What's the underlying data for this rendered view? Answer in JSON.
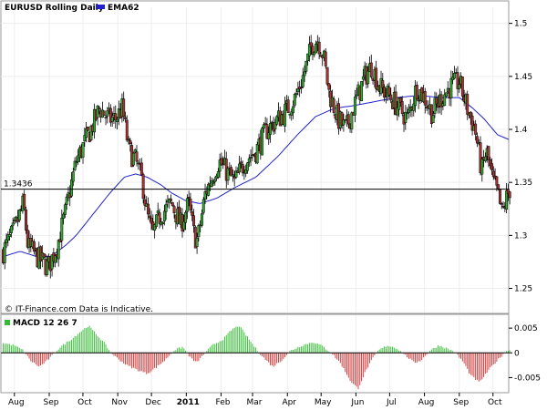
{
  "chart_data": [
    {
      "type": "candlestick",
      "title": "EURUSD Rolling Daily",
      "legend": [
        {
          "name": "EMA62",
          "color": "#2222cc"
        }
      ],
      "ytick_labels": [
        "1.5",
        "1.45",
        "1.4",
        "1.35",
        "1.3",
        "1.25"
      ],
      "ylim": [
        1.235,
        1.51
      ],
      "yticks": [
        1.5,
        1.45,
        1.4,
        1.35,
        1.3,
        1.25
      ],
      "xtick_labels": [
        "Aug",
        "Sep",
        "Oct",
        "Nov",
        "Dec",
        "2011",
        "Feb",
        "Mar",
        "Apr",
        "May",
        "Jun",
        "Jul",
        "Aug",
        "Sep",
        "Oct"
      ],
      "xtick_bold_index": 5,
      "xtick_days": [
        0,
        31,
        61,
        92,
        122,
        153,
        184,
        212,
        243,
        273,
        304,
        334,
        365,
        396,
        426
      ],
      "xlim_days": [
        -12,
        440
      ],
      "current_value_label": "1.3436",
      "current_value": 1.3436,
      "source_note": "© IT-Finance.com Data is Indicative.",
      "price_path": [
        [
          -10,
          1.285
        ],
        [
          0,
          1.305
        ],
        [
          8,
          1.33
        ],
        [
          12,
          1.29
        ],
        [
          20,
          1.28
        ],
        [
          30,
          1.27
        ],
        [
          38,
          1.29
        ],
        [
          45,
          1.32
        ],
        [
          55,
          1.37
        ],
        [
          68,
          1.4
        ],
        [
          76,
          1.42
        ],
        [
          84,
          1.41
        ],
        [
          90,
          1.41
        ],
        [
          96,
          1.42
        ],
        [
          102,
          1.38
        ],
        [
          108,
          1.37
        ],
        [
          114,
          1.35
        ],
        [
          118,
          1.32
        ],
        [
          123,
          1.3
        ],
        [
          130,
          1.32
        ],
        [
          140,
          1.33
        ],
        [
          148,
          1.31
        ],
        [
          155,
          1.33
        ],
        [
          160,
          1.3
        ],
        [
          163,
          1.295
        ],
        [
          170,
          1.34
        ],
        [
          182,
          1.37
        ],
        [
          196,
          1.35
        ],
        [
          205,
          1.37
        ],
        [
          215,
          1.38
        ],
        [
          225,
          1.4
        ],
        [
          240,
          1.415
        ],
        [
          250,
          1.43
        ],
        [
          257,
          1.45
        ],
        [
          265,
          1.48
        ],
        [
          270,
          1.485
        ],
        [
          275,
          1.47
        ],
        [
          280,
          1.435
        ],
        [
          288,
          1.41
        ],
        [
          295,
          1.4
        ],
        [
          305,
          1.43
        ],
        [
          312,
          1.45
        ],
        [
          318,
          1.46
        ],
        [
          325,
          1.44
        ],
        [
          335,
          1.43
        ],
        [
          342,
          1.42
        ],
        [
          350,
          1.41
        ],
        [
          358,
          1.44
        ],
        [
          365,
          1.43
        ],
        [
          372,
          1.415
        ],
        [
          380,
          1.43
        ],
        [
          388,
          1.44
        ],
        [
          396,
          1.445
        ],
        [
          403,
          1.42
        ],
        [
          410,
          1.4
        ],
        [
          416,
          1.36
        ],
        [
          420,
          1.38
        ],
        [
          426,
          1.35
        ],
        [
          430,
          1.34
        ],
        [
          434,
          1.32
        ],
        [
          438,
          1.335
        ],
        [
          441,
          1.3436
        ]
      ],
      "ema_path": [
        [
          -10,
          1.28
        ],
        [
          5,
          1.285
        ],
        [
          20,
          1.28
        ],
        [
          32,
          1.28
        ],
        [
          45,
          1.29
        ],
        [
          55,
          1.3
        ],
        [
          70,
          1.32
        ],
        [
          85,
          1.34
        ],
        [
          98,
          1.355
        ],
        [
          108,
          1.358
        ],
        [
          118,
          1.355
        ],
        [
          130,
          1.348
        ],
        [
          140,
          1.34
        ],
        [
          152,
          1.333
        ],
        [
          165,
          1.33
        ],
        [
          180,
          1.335
        ],
        [
          196,
          1.345
        ],
        [
          215,
          1.355
        ],
        [
          235,
          1.375
        ],
        [
          252,
          1.395
        ],
        [
          268,
          1.412
        ],
        [
          285,
          1.42
        ],
        [
          300,
          1.422
        ],
        [
          320,
          1.426
        ],
        [
          340,
          1.43
        ],
        [
          360,
          1.432
        ],
        [
          380,
          1.43
        ],
        [
          396,
          1.43
        ],
        [
          408,
          1.42
        ],
        [
          418,
          1.41
        ],
        [
          430,
          1.395
        ],
        [
          441,
          1.39
        ]
      ]
    },
    {
      "type": "histogram",
      "title": "MACD 12 26 7",
      "ytick_labels": [
        "0.005",
        "0",
        "-0.005"
      ],
      "ylim": [
        -0.0075,
        0.0065
      ],
      "yticks": [
        0.005,
        0,
        -0.005
      ],
      "positive_color": "#33bb33",
      "negative_color": "#cc3333",
      "macd_path": [
        [
          -10,
          0.002
        ],
        [
          0,
          0.0015
        ],
        [
          8,
          0.0005
        ],
        [
          14,
          -0.0015
        ],
        [
          22,
          -0.0028
        ],
        [
          28,
          -0.0018
        ],
        [
          34,
          -0.0005
        ],
        [
          40,
          0.001
        ],
        [
          52,
          0.003
        ],
        [
          60,
          0.0045
        ],
        [
          66,
          0.0055
        ],
        [
          72,
          0.004
        ],
        [
          80,
          0.002
        ],
        [
          86,
          0.0
        ],
        [
          94,
          -0.0015
        ],
        [
          100,
          -0.0025
        ],
        [
          110,
          -0.0035
        ],
        [
          118,
          -0.0042
        ],
        [
          126,
          -0.003
        ],
        [
          134,
          -0.0015
        ],
        [
          142,
          0.0005
        ],
        [
          150,
          0.0012
        ],
        [
          156,
          -0.0008
        ],
        [
          162,
          -0.002
        ],
        [
          168,
          -0.0005
        ],
        [
          176,
          0.0015
        ],
        [
          186,
          0.0028
        ],
        [
          194,
          0.0048
        ],
        [
          200,
          0.0055
        ],
        [
          208,
          0.003
        ],
        [
          216,
          0.0005
        ],
        [
          224,
          -0.0015
        ],
        [
          230,
          -0.0028
        ],
        [
          238,
          -0.0015
        ],
        [
          246,
          0.0005
        ],
        [
          256,
          0.0015
        ],
        [
          266,
          0.0022
        ],
        [
          274,
          0.0014
        ],
        [
          282,
          0.0
        ],
        [
          290,
          -0.002
        ],
        [
          300,
          -0.006
        ],
        [
          306,
          -0.0072
        ],
        [
          312,
          -0.004
        ],
        [
          318,
          -0.0015
        ],
        [
          324,
          0.0005
        ],
        [
          332,
          0.0015
        ],
        [
          340,
          0.001
        ],
        [
          348,
          -0.0005
        ],
        [
          356,
          -0.002
        ],
        [
          362,
          -0.0015
        ],
        [
          370,
          0.0005
        ],
        [
          378,
          0.0015
        ],
        [
          386,
          0.0008
        ],
        [
          392,
          0.0002
        ],
        [
          400,
          -0.002
        ],
        [
          406,
          -0.0045
        ],
        [
          414,
          -0.006
        ],
        [
          422,
          -0.0035
        ],
        [
          430,
          -0.0015
        ],
        [
          436,
          0.0
        ],
        [
          441,
          0.0007
        ]
      ]
    }
  ]
}
